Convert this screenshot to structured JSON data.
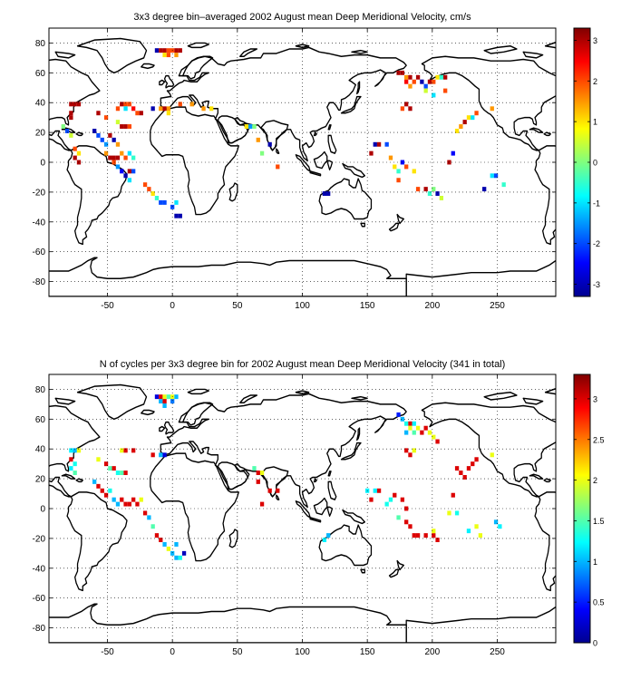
{
  "chart_data": [
    {
      "type": "heatmap",
      "title": "3x3 degree bin–averaged 2002 August mean Deep Meridional Velocity, cm/s",
      "xlabel": "",
      "ylabel": "",
      "xlim": [
        -95,
        295
      ],
      "ylim": [
        -90,
        90
      ],
      "xticks": [
        -50,
        0,
        50,
        100,
        150,
        200,
        250
      ],
      "yticks": [
        -80,
        -60,
        -40,
        -20,
        0,
        20,
        40,
        60,
        80
      ],
      "grid": true,
      "colormap": "jet",
      "colorbar": {
        "min": -3.3,
        "max": 3.3,
        "ticks": [
          -3,
          -2,
          -1,
          0,
          1,
          2,
          3
        ]
      },
      "bins": [
        [
          -12,
          75,
          -3
        ],
        [
          -9,
          75,
          3
        ],
        [
          -6,
          75,
          3
        ],
        [
          -3,
          75,
          2
        ],
        [
          0,
          75,
          2
        ],
        [
          3,
          75,
          3
        ],
        [
          6,
          75,
          3
        ],
        [
          -6,
          72,
          1
        ],
        [
          -3,
          72,
          2
        ],
        [
          3,
          72,
          1.5
        ],
        [
          -78,
          39,
          3
        ],
        [
          -75,
          39,
          3
        ],
        [
          -72,
          39,
          3
        ],
        [
          -39,
          39,
          3
        ],
        [
          -36,
          39,
          2
        ],
        [
          -33,
          39,
          2
        ],
        [
          -42,
          36,
          2
        ],
        [
          -36,
          36,
          -1
        ],
        [
          -30,
          36,
          2.5
        ],
        [
          15,
          39,
          1.5
        ],
        [
          -27,
          33,
          2
        ],
        [
          -24,
          33,
          3
        ],
        [
          -15,
          36,
          -3
        ],
        [
          -9,
          36,
          1.5
        ],
        [
          -6,
          36,
          3
        ],
        [
          -3,
          36,
          1.5
        ],
        [
          -3,
          33,
          1
        ],
        [
          6,
          39,
          2
        ],
        [
          24,
          36,
          1.5
        ],
        [
          30,
          36,
          1
        ],
        [
          -78,
          33,
          3
        ],
        [
          -78,
          30,
          3
        ],
        [
          -51,
          30,
          2
        ],
        [
          -57,
          33,
          3
        ],
        [
          -42,
          27,
          0.5
        ],
        [
          -39,
          24,
          3
        ],
        [
          -36,
          24,
          3
        ],
        [
          -33,
          24,
          2
        ],
        [
          -60,
          21,
          -3
        ],
        [
          -57,
          18,
          -2
        ],
        [
          -54,
          15,
          -2
        ],
        [
          -51,
          12,
          -1.5
        ],
        [
          -48,
          18,
          3
        ],
        [
          -45,
          15,
          -3
        ],
        [
          -42,
          12,
          1.5
        ],
        [
          -51,
          6,
          1.5
        ],
        [
          -48,
          3,
          3
        ],
        [
          -45,
          3,
          3
        ],
        [
          -42,
          3,
          3
        ],
        [
          -39,
          6,
          1.5
        ],
        [
          -36,
          3,
          2
        ],
        [
          -33,
          6,
          -1
        ],
        [
          -30,
          3,
          -0.5
        ],
        [
          -45,
          0,
          2
        ],
        [
          -42,
          -3,
          -1.5
        ],
        [
          -39,
          -6,
          -2.5
        ],
        [
          -36,
          -9,
          -3
        ],
        [
          -33,
          -6,
          3
        ],
        [
          -30,
          -6,
          -2
        ],
        [
          -33,
          -12,
          -1
        ],
        [
          -21,
          -15,
          2
        ],
        [
          -18,
          -18,
          2
        ],
        [
          -15,
          -21,
          1
        ],
        [
          -12,
          -24,
          -0.5
        ],
        [
          -9,
          -27,
          -2
        ],
        [
          -6,
          -27,
          -2
        ],
        [
          0,
          -30,
          -2
        ],
        [
          3,
          -36,
          -3
        ],
        [
          6,
          -36,
          -3
        ],
        [
          3,
          -27,
          -1
        ],
        [
          57,
          24,
          1
        ],
        [
          60,
          24,
          -1.5
        ],
        [
          63,
          24,
          0
        ],
        [
          66,
          15,
          1.5
        ],
        [
          69,
          6,
          0
        ],
        [
          75,
          12,
          -3
        ],
        [
          81,
          -3,
          2
        ],
        [
          117,
          -21,
          -3
        ],
        [
          120,
          -21,
          -3
        ],
        [
          153,
          6,
          3
        ],
        [
          156,
          12,
          -3
        ],
        [
          159,
          12,
          3
        ],
        [
          165,
          12,
          -2
        ],
        [
          168,
          3,
          1.5
        ],
        [
          171,
          -3,
          1
        ],
        [
          174,
          -6,
          -0.5
        ],
        [
          177,
          0,
          -2.5
        ],
        [
          180,
          -3,
          2
        ],
        [
          186,
          -6,
          1
        ],
        [
          174,
          -12,
          2
        ],
        [
          189,
          -18,
          2
        ],
        [
          195,
          -18,
          3
        ],
        [
          198,
          -21,
          -0.5
        ],
        [
          204,
          -21,
          -3
        ],
        [
          201,
          -18,
          0
        ],
        [
          207,
          -24,
          0.5
        ],
        [
          213,
          0,
          3
        ],
        [
          216,
          6,
          -2.5
        ],
        [
          174,
          60,
          3
        ],
        [
          177,
          60,
          3
        ],
        [
          180,
          57,
          1.5
        ],
        [
          183,
          57,
          3
        ],
        [
          186,
          54,
          2
        ],
        [
          189,
          57,
          3
        ],
        [
          192,
          54,
          -3
        ],
        [
          195,
          51,
          -2
        ],
        [
          198,
          54,
          3
        ],
        [
          201,
          54,
          2
        ],
        [
          204,
          57,
          1
        ],
        [
          207,
          57,
          -0.5
        ],
        [
          210,
          57,
          3
        ],
        [
          180,
          54,
          2.5
        ],
        [
          183,
          51,
          1.5
        ],
        [
          195,
          48,
          0.5
        ],
        [
          201,
          45,
          -1
        ],
        [
          210,
          48,
          2
        ],
        [
          180,
          39,
          3
        ],
        [
          177,
          36,
          2
        ],
        [
          183,
          36,
          3
        ],
        [
          219,
          21,
          1
        ],
        [
          222,
          24,
          1.5
        ],
        [
          225,
          27,
          3
        ],
        [
          228,
          30,
          1
        ],
        [
          231,
          30,
          -1
        ],
        [
          234,
          33,
          2
        ],
        [
          246,
          36,
          1.5
        ],
        [
          246,
          -9,
          -1
        ],
        [
          249,
          -9,
          -2
        ],
        [
          255,
          -15,
          -0.5
        ],
        [
          240,
          -18,
          -3
        ],
        [
          -84,
          24,
          0
        ],
        [
          -81,
          21,
          -2
        ],
        [
          -78,
          18,
          0.5
        ],
        [
          -75,
          9,
          2
        ],
        [
          -72,
          6,
          1
        ],
        [
          -75,
          3,
          3
        ],
        [
          -72,
          0,
          3
        ]
      ]
    },
    {
      "type": "heatmap",
      "title": "N of cycles per 3x3 degree bin for 2002 August mean Deep Meridional Velocity (341 in total)",
      "xlabel": "",
      "ylabel": "",
      "xlim": [
        -95,
        295
      ],
      "ylim": [
        -90,
        90
      ],
      "xticks": [
        -50,
        0,
        50,
        100,
        150,
        200,
        250
      ],
      "yticks": [
        -80,
        -60,
        -40,
        -20,
        0,
        20,
        40,
        60,
        80
      ],
      "grid": true,
      "colormap": "jet",
      "colorbar": {
        "min": 0,
        "max": 3.3,
        "ticks": [
          0,
          0.5,
          1,
          1.5,
          2,
          2.5,
          3
        ]
      },
      "bins": [
        [
          -12,
          75,
          0.3
        ],
        [
          -9,
          75,
          3
        ],
        [
          -6,
          75,
          2
        ],
        [
          -3,
          75,
          1.5
        ],
        [
          0,
          75,
          2
        ],
        [
          3,
          75,
          1
        ],
        [
          -9,
          72,
          1
        ],
        [
          -6,
          72,
          3
        ],
        [
          0,
          72,
          0.8
        ],
        [
          -6,
          69,
          1
        ],
        [
          -78,
          39,
          1.2
        ],
        [
          -75,
          39,
          1
        ],
        [
          -72,
          39,
          2
        ],
        [
          -39,
          39,
          2
        ],
        [
          -36,
          39,
          3
        ],
        [
          -30,
          39,
          3
        ],
        [
          -15,
          36,
          3
        ],
        [
          -9,
          36,
          1
        ],
        [
          -6,
          36,
          0.3
        ],
        [
          -78,
          33,
          3
        ],
        [
          -75,
          30,
          1.3
        ],
        [
          -78,
          27,
          1.2
        ],
        [
          -75,
          24,
          1.5
        ],
        [
          -57,
          33,
          2
        ],
        [
          -51,
          30,
          3
        ],
        [
          -48,
          27,
          1.5
        ],
        [
          -45,
          27,
          3
        ],
        [
          -42,
          24,
          1.3
        ],
        [
          -39,
          24,
          1.5
        ],
        [
          -36,
          24,
          3
        ],
        [
          -60,
          18,
          1
        ],
        [
          -57,
          15,
          3
        ],
        [
          -54,
          12,
          3
        ],
        [
          -51,
          9,
          3
        ],
        [
          -48,
          12,
          1.3
        ],
        [
          -45,
          6,
          1
        ],
        [
          -42,
          3,
          1
        ],
        [
          -39,
          6,
          3
        ],
        [
          -36,
          3,
          3
        ],
        [
          -33,
          3,
          3
        ],
        [
          -30,
          6,
          3
        ],
        [
          -27,
          3,
          3
        ],
        [
          -24,
          6,
          2
        ],
        [
          -21,
          -3,
          3
        ],
        [
          -18,
          -6,
          1
        ],
        [
          -15,
          -12,
          1.5
        ],
        [
          -12,
          -18,
          3
        ],
        [
          -9,
          -21,
          3
        ],
        [
          -6,
          -24,
          1
        ],
        [
          -3,
          -27,
          2
        ],
        [
          0,
          -30,
          1
        ],
        [
          3,
          -33,
          1
        ],
        [
          6,
          -33,
          1.3
        ],
        [
          9,
          -30,
          0.2
        ],
        [
          3,
          -24,
          1
        ],
        [
          63,
          27,
          1.5
        ],
        [
          66,
          24,
          3
        ],
        [
          69,
          24,
          2
        ],
        [
          66,
          18,
          3
        ],
        [
          69,
          3,
          3
        ],
        [
          81,
          12,
          3
        ],
        [
          75,
          12,
          3
        ],
        [
          117,
          -21,
          1.2
        ],
        [
          120,
          -18,
          1
        ],
        [
          150,
          12,
          1.2
        ],
        [
          153,
          6,
          3
        ],
        [
          156,
          12,
          1.2
        ],
        [
          159,
          12,
          3
        ],
        [
          165,
          3,
          1.3
        ],
        [
          168,
          6,
          1.3
        ],
        [
          171,
          9,
          3
        ],
        [
          177,
          6,
          3
        ],
        [
          180,
          0,
          3
        ],
        [
          174,
          -6,
          1.5
        ],
        [
          180,
          -9,
          3
        ],
        [
          183,
          -12,
          3
        ],
        [
          186,
          -18,
          3
        ],
        [
          189,
          -18,
          3
        ],
        [
          195,
          -18,
          3
        ],
        [
          201,
          -18,
          3
        ],
        [
          204,
          -21,
          3
        ],
        [
          201,
          -15,
          2
        ],
        [
          213,
          -3,
          2
        ],
        [
          216,
          9,
          3
        ],
        [
          219,
          -3,
          1.3
        ],
        [
          174,
          63,
          0.5
        ],
        [
          177,
          60,
          1
        ],
        [
          180,
          57,
          1.3
        ],
        [
          183,
          57,
          3
        ],
        [
          186,
          57,
          1.2
        ],
        [
          189,
          54,
          2
        ],
        [
          192,
          51,
          3
        ],
        [
          195,
          54,
          3
        ],
        [
          198,
          51,
          2
        ],
        [
          201,
          48,
          2
        ],
        [
          204,
          45,
          3
        ],
        [
          180,
          51,
          1
        ],
        [
          183,
          54,
          2
        ],
        [
          186,
          51,
          1.5
        ],
        [
          180,
          39,
          3
        ],
        [
          183,
          36,
          3
        ],
        [
          186,
          39,
          2
        ],
        [
          219,
          27,
          3
        ],
        [
          222,
          24,
          3
        ],
        [
          225,
          21,
          3
        ],
        [
          228,
          27,
          3
        ],
        [
          231,
          30,
          3
        ],
        [
          234,
          33,
          3
        ],
        [
          246,
          36,
          2
        ],
        [
          249,
          -9,
          1
        ],
        [
          252,
          -12,
          1.2
        ],
        [
          237,
          -18,
          2
        ],
        [
          234,
          -12,
          2
        ],
        [
          228,
          -15,
          1.2
        ]
      ]
    }
  ]
}
